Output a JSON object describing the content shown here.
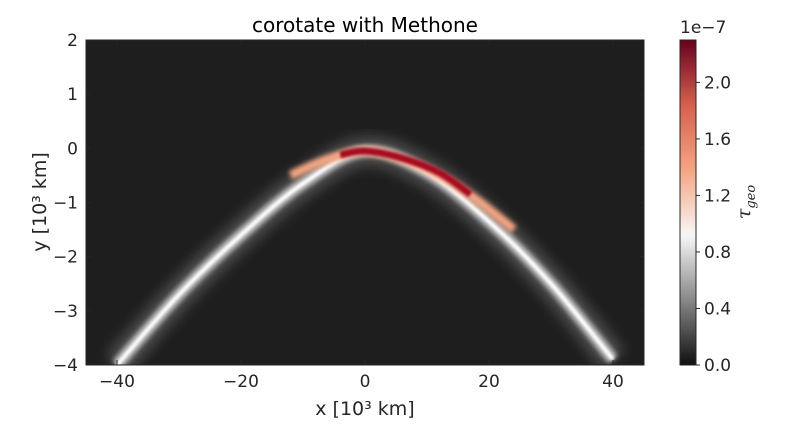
{
  "chart_data": {
    "type": "heatmap",
    "title": "corotate with Methone",
    "xlabel": "x [10³ km]",
    "ylabel": "y [10³ km]",
    "xlim": [
      -45,
      45
    ],
    "ylim": [
      -4,
      2
    ],
    "x_ticks": [
      -40,
      -20,
      0,
      20,
      40
    ],
    "x_tick_labels": [
      "−40",
      "−20",
      "0",
      "20",
      "40"
    ],
    "y_ticks": [
      -4,
      -3,
      -2,
      -1,
      0,
      1,
      2
    ],
    "y_tick_labels": [
      "−4",
      "−3",
      "−2",
      "−1",
      "0",
      "1",
      "2"
    ],
    "colorbar": {
      "label": "τ_geo",
      "label_main": "τ",
      "label_sub": "geo",
      "scale_text": "1e−7",
      "range": [
        0,
        2.3
      ],
      "ticks": [
        0.0,
        0.4,
        0.8,
        1.2,
        1.6,
        2.0
      ],
      "tick_labels": [
        "0.0",
        "0.4",
        "0.8",
        "1.2",
        "1.6",
        "2.0"
      ],
      "colormap": "gray-to-red",
      "colors": [
        "#101010",
        "#888888",
        "#f7f7f7",
        "#f4a582",
        "#d6604d",
        "#67001f"
      ]
    },
    "arc_model": {
      "description_free": true,
      "x_samples": [
        -40,
        -30,
        -20,
        -10,
        0,
        10,
        20,
        30,
        40
      ],
      "y_center": [
        -4.0,
        -2.7,
        -1.6,
        -0.65,
        -0.05,
        -0.45,
        -1.35,
        -2.5,
        -3.9
      ],
      "peak_values": [
        0.55,
        0.7,
        0.85,
        1.1,
        2.3,
        2.1,
        1.6,
        0.9,
        0.6
      ]
    },
    "background_level": 0.2
  }
}
